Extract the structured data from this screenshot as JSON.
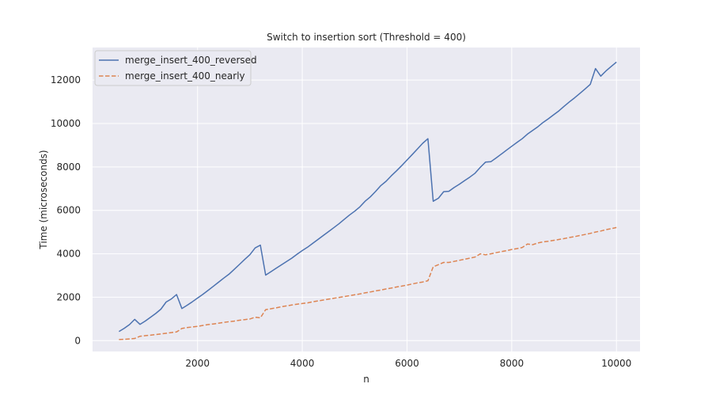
{
  "chart_data": {
    "type": "line",
    "title": "Switch to insertion sort (Threshold = 400)",
    "xlabel": "n",
    "ylabel": "Time (microseconds)",
    "xlim": [
      -5,
      10450
    ],
    "ylim": [
      -500,
      13500
    ],
    "xticks": [
      2000,
      4000,
      6000,
      8000,
      10000
    ],
    "yticks": [
      0,
      2000,
      4000,
      6000,
      8000,
      10000,
      12000
    ],
    "grid": true,
    "legend_position": "top-left",
    "background": "#eaeaf2",
    "series": [
      {
        "name": "merge_insert_400_reversed",
        "color": "#4c72b0",
        "dash": "solid",
        "x": [
          500,
          600,
          700,
          800,
          900,
          1000,
          1100,
          1200,
          1300,
          1400,
          1500,
          1600,
          1700,
          1800,
          1900,
          2000,
          2100,
          2200,
          2300,
          2400,
          2500,
          2600,
          2700,
          2800,
          2900,
          3000,
          3100,
          3200,
          3300,
          3400,
          3500,
          3600,
          3700,
          3800,
          3900,
          4000,
          4100,
          4200,
          4300,
          4400,
          4500,
          4600,
          4700,
          4800,
          4900,
          5000,
          5100,
          5200,
          5300,
          5400,
          5500,
          5600,
          5700,
          5800,
          5900,
          6000,
          6100,
          6200,
          6300,
          6400,
          6500,
          6600,
          6700,
          6800,
          6900,
          7000,
          7100,
          7200,
          7300,
          7400,
          7500,
          7600,
          7700,
          7800,
          7900,
          8000,
          8100,
          8200,
          8300,
          8400,
          8500,
          8600,
          8700,
          8800,
          8900,
          9000,
          9100,
          9200,
          9300,
          9400,
          9500,
          9600,
          9700,
          9800,
          9900,
          10000
        ],
        "y": [
          420,
          570,
          740,
          980,
          750,
          900,
          1070,
          1250,
          1450,
          1780,
          1920,
          2120,
          1480,
          1630,
          1790,
          1960,
          2130,
          2310,
          2500,
          2690,
          2880,
          3060,
          3280,
          3510,
          3740,
          3960,
          4270,
          4400,
          3020,
          3170,
          3330,
          3490,
          3640,
          3800,
          3980,
          4150,
          4300,
          4480,
          4660,
          4840,
          5020,
          5200,
          5380,
          5580,
          5780,
          5960,
          6160,
          6420,
          6620,
          6870,
          7140,
          7340,
          7590,
          7820,
          8060,
          8320,
          8570,
          8830,
          9090,
          9300,
          6420,
          6560,
          6860,
          6880,
          7050,
          7200,
          7370,
          7530,
          7710,
          7980,
          8220,
          8240,
          8410,
          8590,
          8770,
          8950,
          9130,
          9300,
          9510,
          9680,
          9850,
          10050,
          10220,
          10400,
          10580,
          10790,
          10990,
          11180,
          11380,
          11590,
          11800,
          12530,
          12180,
          12420,
          12630,
          12830
        ]
      },
      {
        "name": "merge_insert_400_nearly",
        "color": "#dd8452",
        "dash": "dashed",
        "x": [
          500,
          600,
          700,
          800,
          900,
          1000,
          1100,
          1200,
          1300,
          1400,
          1500,
          1600,
          1700,
          1800,
          1900,
          2000,
          2100,
          2200,
          2300,
          2400,
          2500,
          2600,
          2700,
          2800,
          2900,
          3000,
          3100,
          3200,
          3300,
          3400,
          3500,
          3600,
          3700,
          3800,
          3900,
          4000,
          4100,
          4200,
          4300,
          4400,
          4500,
          4600,
          4700,
          4800,
          4900,
          5000,
          5100,
          5200,
          5300,
          5400,
          5500,
          5600,
          5700,
          5800,
          5900,
          6000,
          6100,
          6200,
          6300,
          6400,
          6500,
          6600,
          6700,
          6800,
          6900,
          7000,
          7100,
          7200,
          7300,
          7400,
          7500,
          7600,
          7700,
          7800,
          7900,
          8000,
          8100,
          8200,
          8300,
          8400,
          8500,
          8600,
          8700,
          8800,
          8900,
          9000,
          9100,
          9200,
          9300,
          9400,
          9500,
          9600,
          9700,
          9800,
          9900,
          10000
        ],
        "y": [
          50,
          60,
          80,
          100,
          200,
          230,
          250,
          280,
          310,
          340,
          370,
          400,
          560,
          600,
          630,
          660,
          700,
          740,
          770,
          800,
          840,
          870,
          900,
          940,
          970,
          1000,
          1080,
          1050,
          1430,
          1470,
          1510,
          1560,
          1600,
          1640,
          1680,
          1710,
          1740,
          1790,
          1830,
          1870,
          1910,
          1950,
          1990,
          2030,
          2070,
          2110,
          2150,
          2200,
          2240,
          2290,
          2330,
          2380,
          2420,
          2470,
          2510,
          2560,
          2610,
          2660,
          2700,
          2760,
          3400,
          3500,
          3600,
          3600,
          3650,
          3700,
          3750,
          3800,
          3850,
          4000,
          3950,
          4000,
          4050,
          4100,
          4140,
          4200,
          4240,
          4290,
          4450,
          4420,
          4500,
          4550,
          4580,
          4620,
          4660,
          4700,
          4750,
          4790,
          4840,
          4890,
          4940,
          5000,
          5050,
          5110,
          5160,
          5210
        ]
      }
    ]
  }
}
